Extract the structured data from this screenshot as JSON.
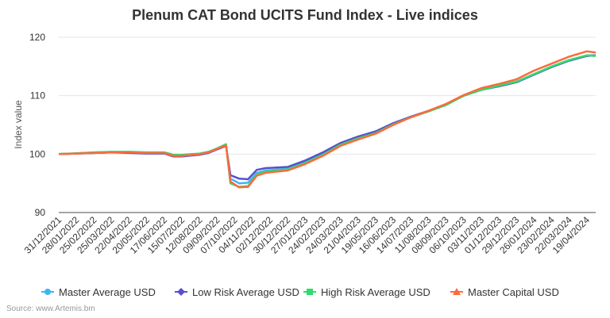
{
  "chart_data": {
    "type": "line",
    "title": "Plenum CAT Bond UCITS Fund Index - Live indices",
    "xlabel": "",
    "ylabel": "Index value",
    "ylim": [
      90,
      120
    ],
    "yticks": [
      90,
      100,
      110,
      120
    ],
    "grid": true,
    "legend": "bottom",
    "xtick_labels": [
      "31/12/2021",
      "28/01/2022",
      "25/02/2022",
      "25/03/2022",
      "22/04/2022",
      "20/05/2022",
      "17/06/2022",
      "15/07/2022",
      "12/08/2022",
      "09/09/2022",
      "07/10/2022",
      "04/11/2022",
      "02/12/2022",
      "30/12/2022",
      "27/01/2023",
      "24/02/2023",
      "24/03/2023",
      "21/04/2023",
      "19/05/2023",
      "16/06/2023",
      "14/07/2023",
      "11/08/2023",
      "08/09/2023",
      "06/10/2023",
      "03/11/2023",
      "01/12/2023",
      "29/12/2023",
      "26/01/2024",
      "23/02/2024",
      "22/03/2024",
      "19/04/2024"
    ],
    "x": [
      "31/12/2021",
      "28/01/2022",
      "25/02/2022",
      "25/03/2022",
      "22/04/2022",
      "20/05/2022",
      "17/06/2022",
      "01/07/2022",
      "15/07/2022",
      "12/08/2022",
      "26/08/2022",
      "09/09/2022",
      "23/09/2022",
      "30/09/2022",
      "14/10/2022",
      "28/10/2022",
      "11/11/2022",
      "25/11/2022",
      "30/12/2022",
      "27/01/2023",
      "24/02/2023",
      "24/03/2023",
      "21/04/2023",
      "19/05/2023",
      "16/06/2023",
      "14/07/2023",
      "11/08/2023",
      "08/09/2023",
      "06/10/2023",
      "03/11/2023",
      "01/12/2023",
      "29/12/2023",
      "26/01/2024",
      "23/02/2024",
      "22/03/2024",
      "19/04/2024",
      "03/05/2024"
    ],
    "series": [
      {
        "name": "Master Average USD",
        "color": "#3fb4f4",
        "marker": "circle",
        "values": [
          100.0,
          100.1,
          100.2,
          100.3,
          100.3,
          100.2,
          100.2,
          99.7,
          99.7,
          100.0,
          100.3,
          100.9,
          101.5,
          95.8,
          95.0,
          95.1,
          96.8,
          97.2,
          97.5,
          98.6,
          100.0,
          101.6,
          102.8,
          103.7,
          105.2,
          106.4,
          107.4,
          108.5,
          110.0,
          111.0,
          111.7,
          112.4,
          113.7,
          115.0,
          116.1,
          116.9,
          116.9
        ]
      },
      {
        "name": "Low Risk Average USD",
        "color": "#5a4fcf",
        "marker": "diamond",
        "values": [
          100.0,
          100.1,
          100.2,
          100.3,
          100.2,
          100.1,
          100.1,
          99.6,
          99.6,
          99.9,
          100.2,
          100.8,
          101.4,
          96.4,
          95.8,
          95.7,
          97.3,
          97.6,
          97.8,
          98.9,
          100.3,
          101.9,
          103.0,
          103.9,
          105.3,
          106.4,
          107.4,
          108.5,
          110.0,
          111.0,
          111.6,
          112.3,
          113.6,
          114.9,
          116.0,
          116.8,
          116.9
        ]
      },
      {
        "name": "High Risk Average USD",
        "color": "#2fdc6c",
        "marker": "square",
        "values": [
          100.0,
          100.15,
          100.3,
          100.4,
          100.4,
          100.3,
          100.3,
          99.9,
          99.9,
          100.1,
          100.4,
          101.0,
          101.7,
          95.0,
          94.4,
          94.5,
          96.5,
          97.0,
          97.4,
          98.5,
          99.9,
          101.6,
          102.7,
          103.6,
          105.1,
          106.3,
          107.3,
          108.4,
          110.0,
          111.0,
          111.7,
          112.4,
          113.7,
          115.0,
          116.1,
          116.9,
          116.8
        ]
      },
      {
        "name": "Master Capital USD",
        "color": "#ff6a3b",
        "marker": "triangle",
        "values": [
          100.0,
          100.1,
          100.2,
          100.3,
          100.3,
          100.2,
          100.2,
          99.7,
          99.7,
          100.0,
          100.3,
          100.9,
          101.5,
          95.3,
          94.3,
          94.4,
          96.3,
          96.8,
          97.2,
          98.3,
          99.7,
          101.4,
          102.5,
          103.5,
          105.0,
          106.3,
          107.4,
          108.6,
          110.1,
          111.3,
          112.0,
          112.8,
          114.3,
          115.5,
          116.7,
          117.6,
          117.4
        ]
      }
    ]
  },
  "source": "Source: www.Artemis.bm"
}
